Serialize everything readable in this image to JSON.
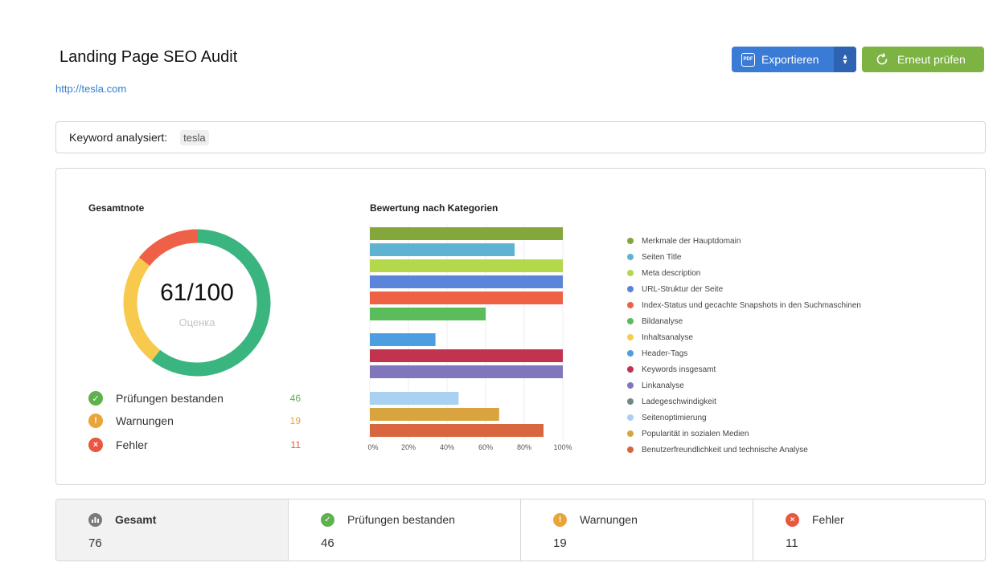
{
  "header": {
    "title": "Landing Page SEO Audit",
    "url": "http://tesla.com",
    "export_label": "Exportieren",
    "recheck_label": "Erneut prüfen",
    "pdf_icon_text": "PDF"
  },
  "keyword": {
    "label": "Keyword analysiert:",
    "value": "tesla"
  },
  "overall": {
    "title": "Gesamtnote",
    "score": "61/100",
    "score_sub": "Оценка",
    "donut": {
      "passed": 46,
      "warnings": 19,
      "errors": 11
    },
    "stats": [
      {
        "label": "Prüfungen bestanden",
        "value": "46",
        "icon": "check-icon",
        "color": "#5fb14f"
      },
      {
        "label": "Warnungen",
        "value": "19",
        "icon": "warning-icon",
        "color": "#e9a43a"
      },
      {
        "label": "Fehler",
        "value": "11",
        "icon": "error-icon",
        "color": "#e8573f"
      }
    ]
  },
  "colors": {
    "passed": "#3bb57f",
    "warnings": "#f7ca4d",
    "errors": "#ee6148",
    "primary": "#3a7bd5",
    "success_button": "#7cb342"
  },
  "chart_data": {
    "type": "bar",
    "title": "Bewertung nach Kategorien",
    "orientation": "horizontal",
    "xlim": [
      0,
      100
    ],
    "xticks": [
      "0%",
      "20%",
      "40%",
      "60%",
      "80%",
      "100%"
    ],
    "grid": true,
    "legend_position": "right",
    "categories": [
      "Merkmale der Hauptdomain",
      "Seiten Title",
      "Meta description",
      "URL-Struktur der Seite",
      "Index-Status und gecachte Snapshots in den Suchmaschinen",
      "Bildanalyse",
      "Inhaltsanalyse",
      "Header-Tags",
      "Keywords insgesamt",
      "Linkanalyse",
      "Ladegeschwindigkeit",
      "Seitenoptimierung",
      "Popularität in sozialen Medien",
      "Benutzerfreundlichkeit und technische Analyse"
    ],
    "values": [
      100,
      75,
      100,
      100,
      100,
      60,
      0,
      34,
      100,
      100,
      0,
      46,
      67,
      90
    ],
    "colors": [
      "#84a73b",
      "#5fb3d2",
      "#b3d84b",
      "#5b85d9",
      "#ef6145",
      "#5bbc5b",
      "#f6cd4b",
      "#4d9ee0",
      "#c2334f",
      "#7f76bd",
      "#708a86",
      "#a8d1f2",
      "#d9a43f",
      "#d8673f"
    ]
  },
  "summary": [
    {
      "label": "Gesamt",
      "value": "76",
      "icon": "chart-icon",
      "color": "#7a7a7a"
    },
    {
      "label": "Prüfungen bestanden",
      "value": "46",
      "icon": "check-icon",
      "color": "#5fb14f"
    },
    {
      "label": "Warnungen",
      "value": "19",
      "icon": "warning-icon",
      "color": "#e9a43a"
    },
    {
      "label": "Fehler",
      "value": "11",
      "icon": "error-icon",
      "color": "#e8573f"
    }
  ]
}
